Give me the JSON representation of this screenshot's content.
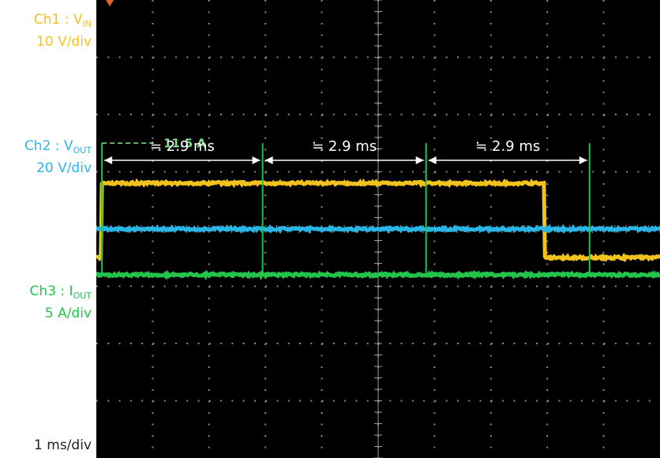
{
  "chart_data": {
    "type": "line",
    "timebase": "1 ms/div",
    "channels": [
      {
        "name": "Ch1 : V",
        "subscript": "IN",
        "scale": "10 V/div",
        "color": "#f2c31c"
      },
      {
        "name": "Ch2 : V",
        "subscript": "OUT",
        "scale": "20 V/div",
        "color": "#29b6e6"
      },
      {
        "name": "Ch3 : I",
        "subscript": "OUT",
        "scale": "5 A/div",
        "color": "#22c44a"
      }
    ],
    "x_range_ms": [
      0,
      10
    ],
    "ch1": {
      "high_level_div": 0.8,
      "low_level_div": -0.5,
      "rise_ms": 0.1,
      "fall_ms": 7.95
    },
    "ch2": {
      "level_div": 0.0
    },
    "ch3": {
      "baseline_div": -0.8,
      "peak_A": 11.5,
      "peaks_ms": [
        0.1,
        2.95,
        5.85,
        8.75
      ]
    },
    "annotations": {
      "peak_label": "11.5 A",
      "intervals": [
        {
          "from_ms": 0.1,
          "to_ms": 2.95,
          "label": "≒ 2.9 ms"
        },
        {
          "from_ms": 2.95,
          "to_ms": 5.85,
          "label": "≒ 2.9 ms"
        },
        {
          "from_ms": 5.85,
          "to_ms": 8.75,
          "label": "≒ 2.9 ms"
        }
      ]
    },
    "grid": true
  }
}
